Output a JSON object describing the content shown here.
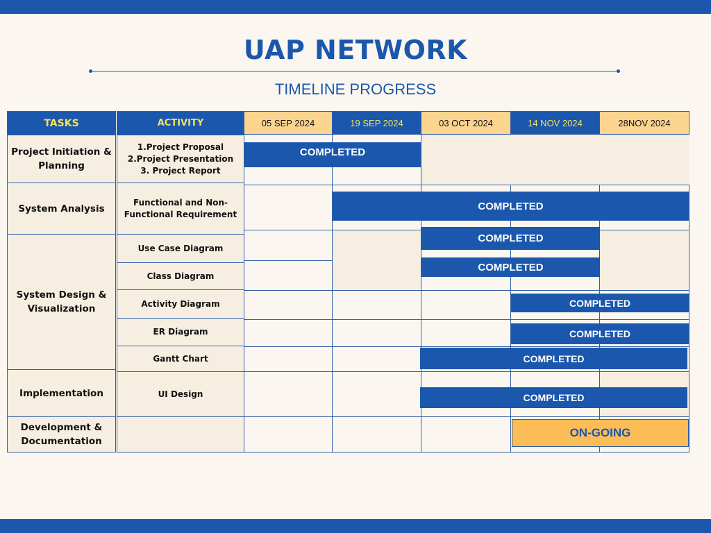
{
  "title": "UAP NETWORK",
  "subtitle": "TIMELINE PROGRESS",
  "colors": {
    "primary_blue": "#1b57ac",
    "header_tan": "#fbd58f",
    "header_label_yellow": "#f5e25a",
    "cell_beige": "#f6efe1",
    "ongoing_orange": "#fcbd57",
    "background": "#fbf7f0"
  },
  "headers": {
    "tasks": "TASKS",
    "activity": "ACTIVITY",
    "dates": [
      "05 SEP 2024",
      "19 SEP 2024",
      "03 OCT 2024",
      "14 NOV 2024",
      "28NOV 2024"
    ]
  },
  "tasks": [
    "Project Initiation & Planning",
    "System Analysis",
    "System Design & Visualization",
    "Implementation",
    "Development & Documentation"
  ],
  "activities": [
    "1.Project Proposal\n2.Project Presentation\n3. Project Report",
    "Functional and Non-\nFunctional Requirement",
    "Use Case Diagram",
    "Class Diagram",
    "Activity Diagram",
    "ER Diagram",
    "Gantt Chart",
    "UI Design",
    ""
  ],
  "bars": [
    {
      "label": "COMPLETED",
      "status": "completed"
    },
    {
      "label": "COMPLETED",
      "status": "completed"
    },
    {
      "label": "COMPLETED",
      "status": "completed"
    },
    {
      "label": "COMPLETED",
      "status": "completed"
    },
    {
      "label": "COMPLETED",
      "status": "completed"
    },
    {
      "label": "COMPLETED",
      "status": "completed"
    },
    {
      "label": "COMPLETED",
      "status": "completed"
    },
    {
      "label": "COMPLETED",
      "status": "completed"
    },
    {
      "label": "ON-GOING",
      "status": "ongoing"
    }
  ]
}
